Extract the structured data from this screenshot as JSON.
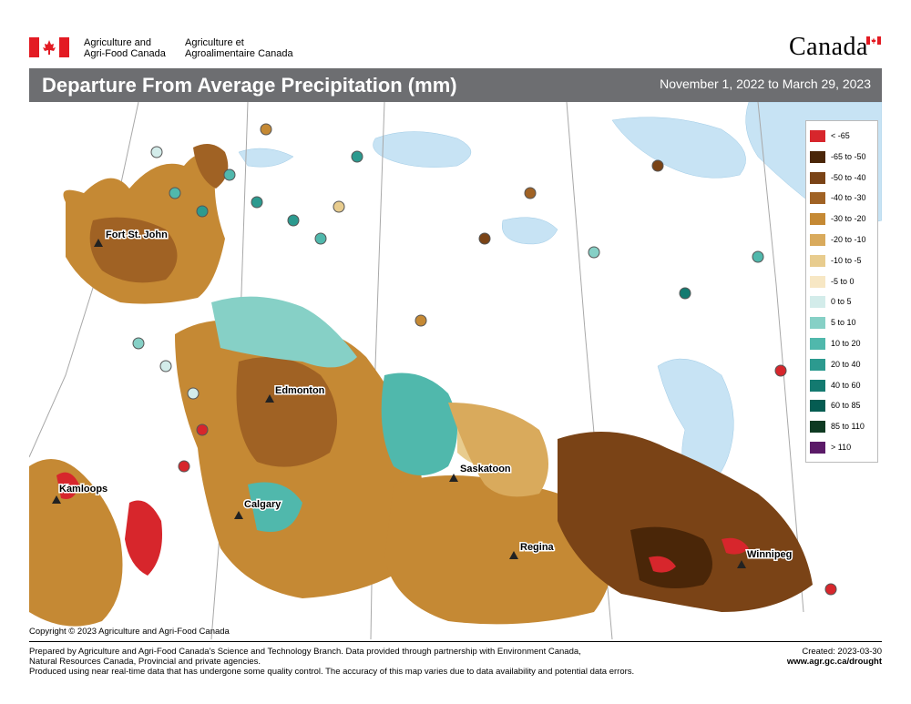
{
  "header": {
    "org_en_line1": "Agriculture and",
    "org_en_line2": "Agri-Food Canada",
    "org_fr_line1": "Agriculture et",
    "org_fr_line2": "Agroalimentaire Canada",
    "wordmark": "Canada"
  },
  "title": "Departure From Average Precipitation (mm)",
  "date_range": "November 1, 2022 to March 29, 2023",
  "cities": [
    {
      "name": "Fort St. John"
    },
    {
      "name": "Edmonton"
    },
    {
      "name": "Kamloops"
    },
    {
      "name": "Calgary"
    },
    {
      "name": "Saskatoon"
    },
    {
      "name": "Regina"
    },
    {
      "name": "Winnipeg"
    }
  ],
  "legend": [
    {
      "label": "< -65",
      "color": "#d7262c"
    },
    {
      "label": "-65 to -50",
      "color": "#4a2608"
    },
    {
      "label": "-50 to -40",
      "color": "#7a4316"
    },
    {
      "label": "-40 to -30",
      "color": "#a06224"
    },
    {
      "label": "-30 to -20",
      "color": "#c58934"
    },
    {
      "label": "-20 to -10",
      "color": "#d9aa5c"
    },
    {
      "label": "-10 to -5",
      "color": "#e8cc8e"
    },
    {
      "label": "-5 to 0",
      "color": "#f7e7c4"
    },
    {
      "label": "0 to 5",
      "color": "#d3ecea"
    },
    {
      "label": "5 to 10",
      "color": "#86d0c6"
    },
    {
      "label": "10 to 20",
      "color": "#50b8ac"
    },
    {
      "label": "20 to 40",
      "color": "#2c9a8f"
    },
    {
      "label": "40 to 60",
      "color": "#137a70"
    },
    {
      "label": "60 to 85",
      "color": "#055c52"
    },
    {
      "label": "85 to 110",
      "color": "#0e3a22"
    },
    {
      "label": "> 110",
      "color": "#5b1a68"
    }
  ],
  "copyright": "Copyright © 2023 Agriculture and Agri-Food Canada",
  "footer": {
    "line1": "Prepared by Agriculture and Agri-Food Canada's Science and Technology Branch. Data provided through partnership with Environment Canada,",
    "line2": "Natural Resources Canada, Provincial and private agencies.",
    "line3": "Produced using near real-time data that has undergone some quality control. The accuracy of this map varies due to data availability and potential data errors.",
    "created": "Created: 2023-03-30",
    "url": "www.agr.gc.ca/drought"
  },
  "colors": {
    "title_bar": "#6d6e71",
    "water": "#c7e3f4",
    "land": "#ffffff"
  }
}
